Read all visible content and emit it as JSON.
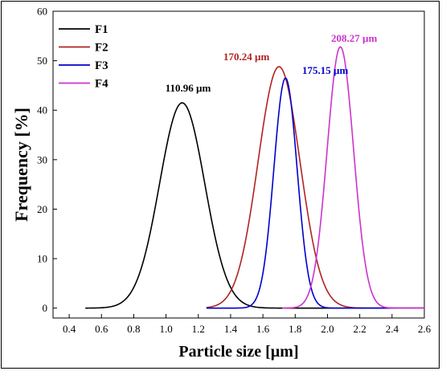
{
  "chart_data": {
    "type": "line",
    "xlabel": "Particle size [µm]",
    "ylabel": "Frequency [%]",
    "xlim": [
      0.3,
      2.6
    ],
    "ylim": [
      -2,
      60
    ],
    "x_ticks": [
      "0.4",
      "0.6",
      "0.8",
      "1.0",
      "1.2",
      "1.4",
      "1.6",
      "1.8",
      "2.0",
      "2.2",
      "2.4",
      "2.6"
    ],
    "y_ticks": [
      "0",
      "10",
      "20",
      "30",
      "40",
      "50",
      "60"
    ],
    "legend_position": "top-left",
    "series": [
      {
        "name": "F1",
        "color": "#000000",
        "peak_x": 1.1,
        "peak_y": 41.5,
        "sigma": 0.14,
        "x_start": 0.5,
        "x_end": 2.6,
        "annotation": "110.96 µm"
      },
      {
        "name": "F2",
        "color": "#b22222",
        "peak_x": 1.7,
        "peak_y": 48.8,
        "sigma": 0.13,
        "x_start": 1.25,
        "x_end": 2.6,
        "annotation": "170.24 µm"
      },
      {
        "name": "F3",
        "color": "#0000cc",
        "peak_x": 1.74,
        "peak_y": 46.5,
        "sigma": 0.072,
        "x_start": 1.25,
        "x_end": 2.6,
        "annotation": "175.15 µm"
      },
      {
        "name": "F4",
        "color": "#cc33cc",
        "peak_x": 2.08,
        "peak_y": 52.8,
        "sigma": 0.082,
        "x_start": 1.72,
        "x_end": 2.6,
        "annotation": "208.27 µm"
      }
    ]
  }
}
